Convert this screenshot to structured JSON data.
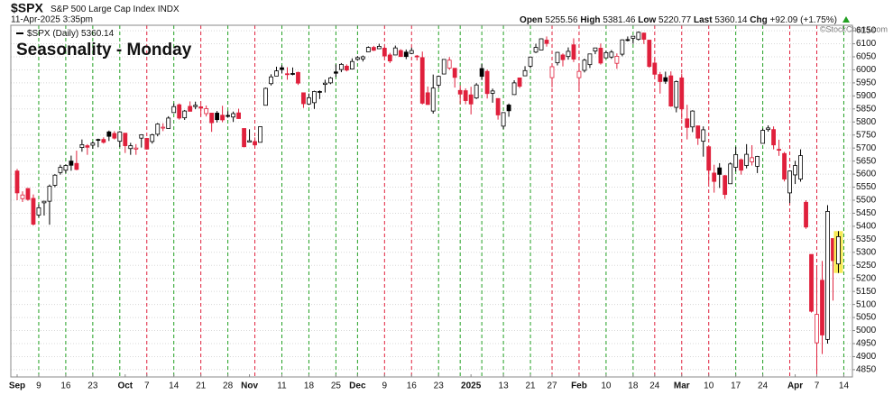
{
  "chart_data": {
    "type": "candlestick",
    "symbol": "$SPX",
    "name": "S&P 500 Large Cap Index",
    "exchange": "INDX",
    "datetime": "11-Apr-2025 3:35pm",
    "quote_labels": {
      "open": "Open",
      "high": "High",
      "low": "Low",
      "last": "Last",
      "change": "Chg"
    },
    "change": "+92.09 (+1.75%)",
    "credit": "©StockCharts.com",
    "series_label": "$SPX (Daily)",
    "title": "Seasonality - Monday",
    "ylim": [
      4822,
      6171
    ],
    "yticks": [
      4850,
      4900,
      4950,
      5000,
      5050,
      5100,
      5150,
      5200,
      5250,
      5300,
      5350,
      5400,
      5450,
      5500,
      5550,
      5600,
      5650,
      5700,
      5750,
      5800,
      5850,
      5900,
      5950,
      6000,
      6050,
      6100,
      6150
    ],
    "grid": true,
    "highlight_color": "#f7ea55",
    "up_color": "#000000",
    "down_color": "#e0203c",
    "title_color": "#1a1adf",
    "categories": [
      "Sep",
      null,
      null,
      null,
      "9",
      null,
      null,
      null,
      null,
      "16",
      null,
      null,
      null,
      null,
      "23",
      null,
      null,
      null,
      null,
      null,
      "Oct",
      null,
      null,
      null,
      "7",
      null,
      null,
      null,
      null,
      "14",
      null,
      null,
      null,
      null,
      "21",
      null,
      null,
      null,
      null,
      "28",
      null,
      null,
      null,
      "Nov",
      null,
      null,
      null,
      null,
      null,
      "11",
      null,
      null,
      null,
      null,
      "18",
      null,
      null,
      null,
      null,
      "25",
      null,
      null,
      null,
      "Dec",
      null,
      null,
      null,
      null,
      "9",
      null,
      null,
      null,
      null,
      "16",
      null,
      null,
      null,
      null,
      "23",
      null,
      null,
      null,
      null,
      null,
      "2025",
      null,
      null,
      null,
      null,
      null,
      "13",
      null,
      null,
      null,
      null,
      "21",
      null,
      null,
      null,
      "27",
      null,
      null,
      null,
      null,
      "Feb",
      null,
      null,
      null,
      null,
      "10",
      null,
      null,
      null,
      null,
      "18",
      null,
      null,
      null,
      "24",
      null,
      null,
      null,
      null,
      "Mar",
      null,
      null,
      null,
      null,
      "10",
      null,
      null,
      null,
      null,
      "17",
      null,
      null,
      null,
      null,
      "24",
      null,
      null,
      null,
      null,
      null,
      "Apr",
      null,
      null,
      null,
      "7",
      null,
      null,
      null,
      null,
      "14"
    ],
    "line_colors": [
      null,
      null,
      null,
      null,
      "#22a022",
      null,
      null,
      null,
      null,
      "#22a022",
      null,
      null,
      null,
      null,
      "#22a022",
      null,
      null,
      null,
      null,
      "#22a022",
      null,
      null,
      null,
      null,
      "#e0203c",
      null,
      null,
      null,
      null,
      "#22a022",
      null,
      null,
      null,
      null,
      "#e0203c",
      null,
      null,
      null,
      null,
      "#22a022",
      null,
      null,
      null,
      null,
      "#e0203c",
      null,
      null,
      null,
      null,
      "#22a022",
      null,
      null,
      null,
      null,
      "#22a022",
      null,
      null,
      null,
      null,
      "#22a022",
      null,
      null,
      null,
      "#22a022",
      null,
      null,
      null,
      null,
      "#e0203c",
      null,
      null,
      null,
      null,
      "#e0203c",
      null,
      null,
      null,
      null,
      "#22a022",
      null,
      null,
      null,
      "#22a022",
      null,
      null,
      null,
      "#22a022",
      null,
      null,
      null,
      "#22a022",
      null,
      null,
      null,
      null,
      "#22a022",
      null,
      null,
      null,
      "#e0203c",
      null,
      null,
      null,
      null,
      "#e0203c",
      null,
      null,
      null,
      null,
      "#22a022",
      null,
      null,
      null,
      null,
      "#22a022",
      null,
      null,
      null,
      "#e0203c",
      null,
      null,
      null,
      null,
      "#e0203c",
      null,
      null,
      null,
      null,
      "#e0203c",
      null,
      null,
      null,
      null,
      "#22a022",
      null,
      null,
      null,
      null,
      "#22a022",
      null,
      null,
      null,
      null,
      "#e0203c",
      null,
      null,
      null,
      null,
      "#e0203c",
      null,
      null,
      null,
      null,
      "#22a022"
    ],
    "open": [
      5612,
      5506,
      5545,
      5507,
      5443,
      5490,
      5496,
      5557,
      5606,
      5615,
      5650,
      5641,
      5702,
      5709,
      5711,
      5733,
      5733,
      5762,
      5756,
      5726,
      5757,
      5698,
      5696,
      5738,
      5737,
      5725,
      5753,
      5778,
      5775,
      5836,
      5866,
      5816,
      5860,
      5859,
      5858,
      5832,
      5834,
      5834,
      5826,
      5825,
      5819,
      5835,
      5775,
      5723,
      5725,
      5722,
      5864,
      5947,
      5976,
      6008,
      5985,
      5986,
      5990,
      5912,
      5869,
      5874,
      5917,
      5944,
      5950,
      5992,
      6001,
      6014,
      6003,
      6040,
      6042,
      6069,
      6086,
      6081,
      6083,
      6057,
      6057,
      6074,
      6068,
      6063,
      6053,
      6047,
      5912,
      5842,
      5941,
      5984,
      6007,
      6006,
      5921,
      5920,
      5904,
      5892,
      6005,
      5994,
      5910,
      5890,
      5784,
      5865,
      5905,
      5969,
      5977,
      6014,
      6068,
      6076,
      6114,
      5970,
      6027,
      6057,
      6051,
      6096,
      5970,
      5998,
      6020,
      6072,
      6083,
      6046,
      6049,
      6025,
      6060,
      6116,
      6121,
      6117,
      6141,
      6114,
      6026,
      5982,
      5970,
      5977,
      5856,
      5969,
      5812,
      5781,
      5785,
      5726,
      5705,
      5604,
      5624,
      5594,
      5563,
      5626,
      5655,
      5633,
      5647,
      5630,
      5718,
      5771,
      5771,
      5695,
      5679,
      5528,
      5597,
      5581,
      5492,
      5292,
      4953,
      5193,
      4966,
      5353,
      5255.56,
      null
    ],
    "high": [
      5620,
      5534,
      5546,
      5522,
      5484,
      5497,
      5560,
      5600,
      5636,
      5637,
      5671,
      5690,
      5733,
      5715,
      5725,
      5736,
      5741,
      5767,
      5765,
      5765,
      5757,
      5720,
      5715,
      5753,
      5739,
      5755,
      5796,
      5795,
      5822,
      5871,
      5871,
      5846,
      5879,
      5878,
      5866,
      5863,
      5835,
      5842,
      5862,
      5842,
      5840,
      5851,
      5775,
      5772,
      5741,
      5783,
      5932,
      5983,
      6012,
      6018,
      6010,
      6009,
      5993,
      5913,
      5909,
      5920,
      5921,
      5962,
      5973,
      6021,
      6026,
      6021,
      6044,
      6053,
      6055,
      6090,
      6092,
      6100,
      6088,
      6065,
      6093,
      6079,
      6078,
      6085,
      6057,
      6070,
      5936,
      5982,
      5978,
      6040,
      6049,
      6006,
      5940,
      5929,
      5935,
      5949,
      6022,
      6001,
      5928,
      5891,
      5837,
      5871,
      5960,
      5970,
      6014,
      6051,
      6100,
      6121,
      6128,
      6018,
      6069,
      6063,
      6086,
      6121,
      6022,
      6043,
      6062,
      6084,
      6101,
      6073,
      6076,
      6063,
      6117,
      6128,
      6129,
      6147,
      6143,
      6115,
      6044,
      5992,
      5993,
      5994,
      5959,
      5986,
      5866,
      5845,
      5786,
      5783,
      5705,
      5636,
      5642,
      5597,
      5645,
      5705,
      5660,
      5715,
      5711,
      5670,
      5775,
      5787,
      5783,
      5732,
      5685,
      5613,
      5651,
      5695,
      5500,
      5292,
      5246,
      5267,
      5481,
      5353,
      5381.46,
      null
    ],
    "low": [
      5500,
      5493,
      5498,
      5403,
      5434,
      5441,
      5406,
      5550,
      5598,
      5604,
      5613,
      5615,
      5686,
      5674,
      5697,
      5703,
      5717,
      5727,
      5733,
      5704,
      5681,
      5674,
      5674,
      5702,
      5694,
      5717,
      5745,
      5765,
      5775,
      5836,
      5809,
      5808,
      5840,
      5849,
      5824,
      5821,
      5762,
      5798,
      5799,
      5816,
      5800,
      5812,
      5703,
      5723,
      5697,
      5722,
      5864,
      5940,
      5976,
      5986,
      5962,
      5979,
      5942,
      5854,
      5865,
      5850,
      5888,
      5913,
      5945,
      5973,
      5991,
      5994,
      6003,
      6035,
      6032,
      6068,
      6072,
      6080,
      6048,
      6026,
      6057,
      6051,
      6041,
      6060,
      6036,
      5867,
      5866,
      5832,
      5930,
      5983,
      6000,
      5932,
      5869,
      5868,
      5829,
      5888,
      5961,
      5890,
      5874,
      5809,
      5773,
      5820,
      5905,
      5930,
      5977,
      6006,
      6064,
      6076,
      6089,
      5933,
      6017,
      6013,
      6039,
      6030,
      5923,
      5990,
      6007,
      6060,
      6020,
      6046,
      6042,
      6004,
      6052,
      6109,
      6100,
      6112,
      6099,
      6008,
      5977,
      5909,
      5946,
      5858,
      5837,
      5810,
      5733,
      5761,
      5712,
      5667,
      5565,
      5529,
      5547,
      5505,
      5563,
      5610,
      5598,
      5622,
      5633,
      5604,
      5718,
      5763,
      5695,
      5670,
      5572,
      5489,
      5562,
      5571,
      5390,
      5069,
      4835,
      4910,
      4950,
      5115,
      5220.77,
      null
    ],
    "close": [
      5528,
      5520,
      5503,
      5408,
      5471,
      5496,
      5554,
      5596,
      5626,
      5633,
      5634,
      5618,
      5713,
      5703,
      5719,
      5732,
      5722,
      5745,
      5738,
      5762,
      5709,
      5709,
      5700,
      5751,
      5696,
      5751,
      5792,
      5780,
      5815,
      5859,
      5815,
      5842,
      5841,
      5864,
      5853,
      5851,
      5797,
      5809,
      5808,
      5823,
      5832,
      5813,
      5705,
      5728,
      5712,
      5782,
      5929,
      5973,
      5996,
      6001,
      5984,
      5985,
      5949,
      5870,
      5893,
      5917,
      5917,
      5949,
      5969,
      5987,
      6021,
      5999,
      6032,
      6047,
      6050,
      6086,
      6075,
      6090,
      6053,
      6034,
      6084,
      6051,
      6051,
      6074,
      6050,
      5872,
      5867,
      5930,
      5975,
      6040,
      6037,
      5971,
      5907,
      5882,
      5869,
      5942,
      5975,
      5909,
      5919,
      5827,
      5836,
      5843,
      5950,
      5937,
      5997,
      6049,
      6086,
      6119,
      6101,
      6012,
      6067,
      6039,
      6071,
      6041,
      5994,
      6037,
      6061,
      6084,
      6026,
      6066,
      6068,
      6052,
      6115,
      6115,
      6129,
      6144,
      6117,
      6013,
      5983,
      5955,
      5956,
      5861,
      5955,
      5850,
      5779,
      5842,
      5738,
      5770,
      5615,
      5572,
      5599,
      5522,
      5639,
      5675,
      5615,
      5676,
      5663,
      5668,
      5768,
      5777,
      5712,
      5693,
      5581,
      5612,
      5633,
      5671,
      5397,
      5074,
      5062,
      4983,
      5457,
      5268,
      5360.14,
      null
    ]
  }
}
